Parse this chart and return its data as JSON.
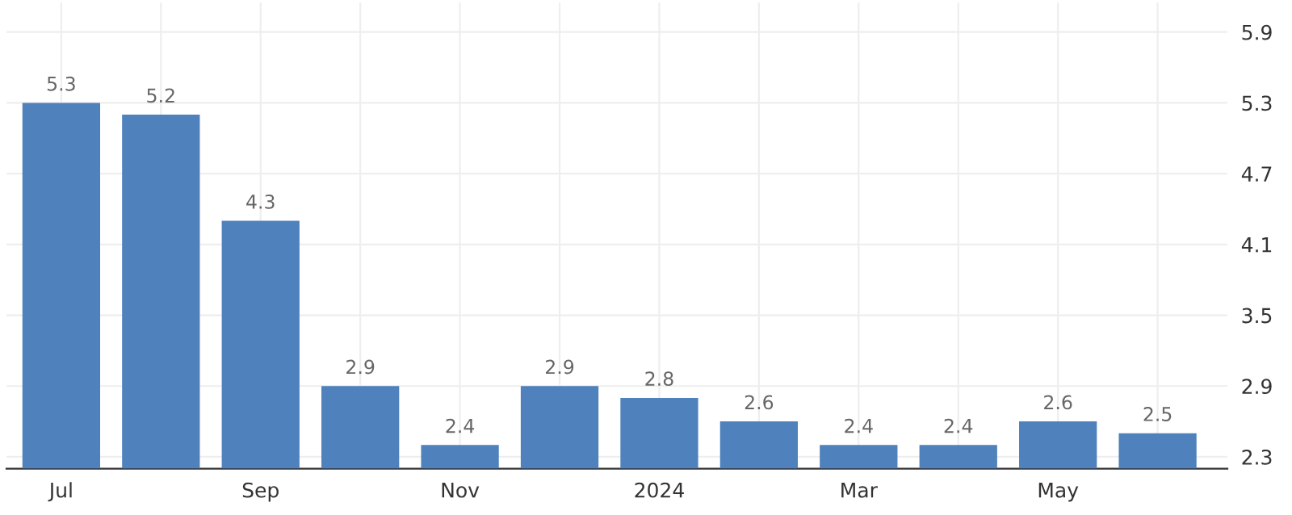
{
  "chart_data": {
    "type": "bar",
    "categories": [
      "Jul",
      null,
      "Sep",
      null,
      "Nov",
      null,
      "2024",
      null,
      "Mar",
      null,
      "May",
      null
    ],
    "values": [
      5.3,
      5.2,
      4.3,
      2.9,
      2.4,
      2.9,
      2.8,
      2.6,
      2.4,
      2.4,
      2.6,
      2.5
    ],
    "color": "#4f81bd",
    "ylim": [
      2.2,
      6.15
    ],
    "yticks": [
      2.3,
      2.9,
      3.5,
      4.1,
      4.7,
      5.3,
      5.9
    ],
    "grid": true,
    "data_labels": true
  }
}
